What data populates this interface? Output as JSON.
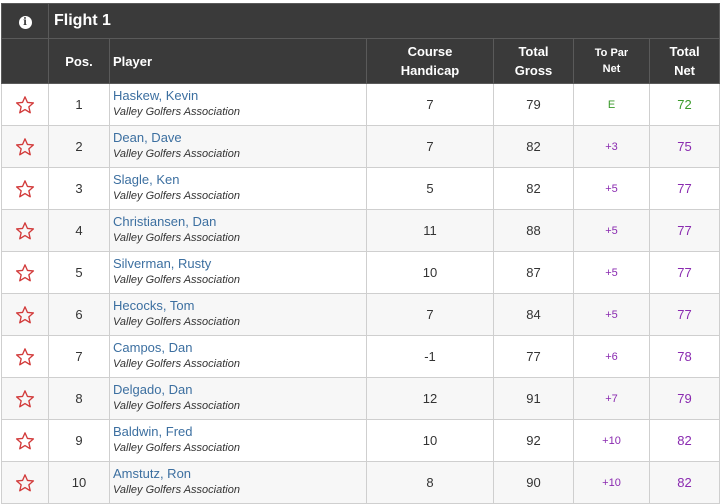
{
  "flight": {
    "title": "Flight 1",
    "info_icon": "info-icon"
  },
  "columns": {
    "pos": "Pos.",
    "player": "Player",
    "course_handicap": [
      "Course",
      "Handicap"
    ],
    "total_gross": [
      "Total",
      "Gross"
    ],
    "to_par_net": [
      "To Par",
      "Net"
    ],
    "total_net": [
      "Total",
      "Net"
    ]
  },
  "colors": {
    "header_bg": "#3a3a3a",
    "player_link": "#3c6fa0",
    "star": "#d23a3a",
    "even_par": "#3a9a2a",
    "over_par": "#8a2ab0"
  },
  "rows": [
    {
      "pos": "1",
      "name": "Haskew, Kevin",
      "assoc": "Valley Golfers Association",
      "course_handicap": "7",
      "gross": "79",
      "to_par": "E",
      "net": "72",
      "status": "even"
    },
    {
      "pos": "2",
      "name": "Dean, Dave",
      "assoc": "Valley Golfers Association",
      "course_handicap": "7",
      "gross": "82",
      "to_par": "+3",
      "net": "75",
      "status": "over"
    },
    {
      "pos": "3",
      "name": "Slagle, Ken",
      "assoc": "Valley Golfers Association",
      "course_handicap": "5",
      "gross": "82",
      "to_par": "+5",
      "net": "77",
      "status": "over"
    },
    {
      "pos": "4",
      "name": "Christiansen, Dan",
      "assoc": "Valley Golfers Association",
      "course_handicap": "11",
      "gross": "88",
      "to_par": "+5",
      "net": "77",
      "status": "over"
    },
    {
      "pos": "5",
      "name": "Silverman, Rusty",
      "assoc": "Valley Golfers Association",
      "course_handicap": "10",
      "gross": "87",
      "to_par": "+5",
      "net": "77",
      "status": "over"
    },
    {
      "pos": "6",
      "name": "Hecocks, Tom",
      "assoc": "Valley Golfers Association",
      "course_handicap": "7",
      "gross": "84",
      "to_par": "+5",
      "net": "77",
      "status": "over"
    },
    {
      "pos": "7",
      "name": "Campos, Dan",
      "assoc": "Valley Golfers Association",
      "course_handicap": "-1",
      "gross": "77",
      "to_par": "+6",
      "net": "78",
      "status": "over"
    },
    {
      "pos": "8",
      "name": "Delgado, Dan",
      "assoc": "Valley Golfers Association",
      "course_handicap": "12",
      "gross": "91",
      "to_par": "+7",
      "net": "79",
      "status": "over"
    },
    {
      "pos": "9",
      "name": "Baldwin, Fred",
      "assoc": "Valley Golfers Association",
      "course_handicap": "10",
      "gross": "92",
      "to_par": "+10",
      "net": "82",
      "status": "over"
    },
    {
      "pos": "10",
      "name": "Amstutz, Ron",
      "assoc": "Valley Golfers Association",
      "course_handicap": "8",
      "gross": "90",
      "to_par": "+10",
      "net": "82",
      "status": "over"
    }
  ]
}
